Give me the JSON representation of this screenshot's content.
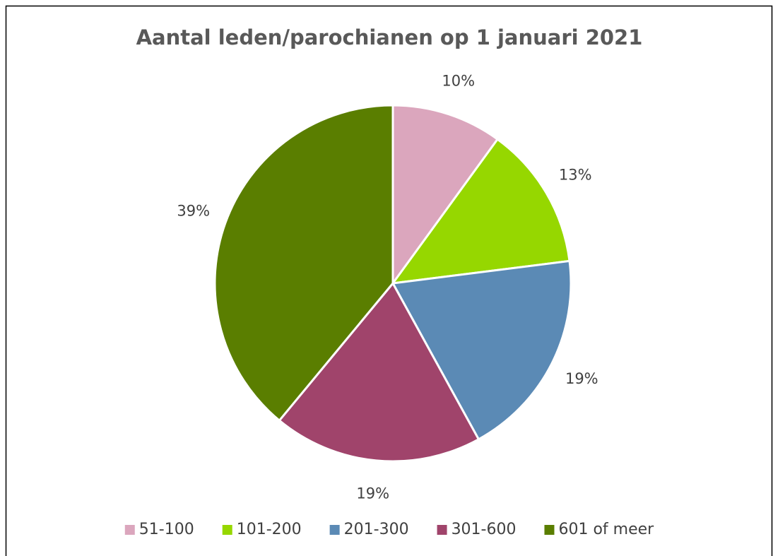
{
  "chart_data": {
    "type": "pie",
    "title": "Aantal leden/parochianen op 1 januari 2021",
    "categories": [
      "51-100",
      "101-200",
      "201-300",
      "301-600",
      "601 of meer"
    ],
    "values": [
      10,
      13,
      19,
      19,
      39
    ],
    "value_labels": [
      "10%",
      "13%",
      "19%",
      "19%",
      "39%"
    ],
    "colors": [
      "#dba6bd",
      "#96d700",
      "#5b8ab5",
      "#a0446b",
      "#5a7e00"
    ],
    "legend": "bottom"
  }
}
